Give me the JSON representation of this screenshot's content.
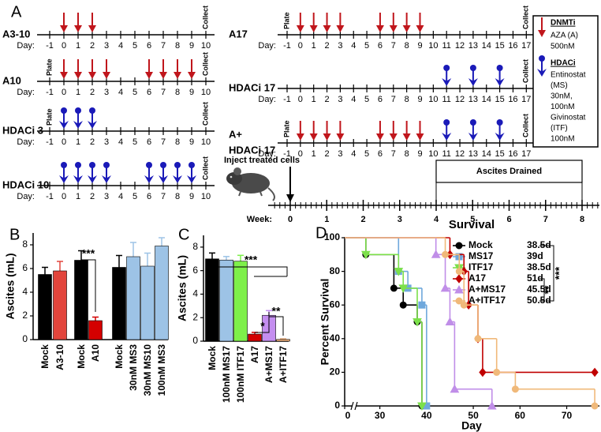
{
  "panel_labels": [
    "A",
    "B",
    "C",
    "D"
  ],
  "panel_a": {
    "day_label": "Day:",
    "timelines": [
      {
        "label": [
          "A3-10"
        ],
        "days": [
          -1,
          0,
          1,
          2,
          3,
          4,
          5,
          6,
          7,
          8,
          9,
          10
        ],
        "dnmti_days": [
          0,
          1,
          2
        ],
        "collect": "Collect"
      },
      {
        "label": [
          "A10"
        ],
        "days": [
          -1,
          0,
          1,
          2,
          3,
          4,
          5,
          6,
          7,
          8,
          9,
          10
        ],
        "plate": "Plate",
        "dnmti_days": [
          0,
          1,
          2,
          3,
          6,
          7,
          8,
          9
        ],
        "collect": "Collect"
      },
      {
        "label": [
          "HDACi 3"
        ],
        "days": [
          -1,
          0,
          1,
          2,
          3,
          4,
          5,
          6,
          7,
          8,
          9,
          10
        ],
        "plate": "Plate",
        "hdaci_days": [
          0,
          1,
          2
        ],
        "collect": "Collect"
      },
      {
        "label": [
          "HDACi 10"
        ],
        "days": [
          -1,
          0,
          1,
          2,
          3,
          4,
          5,
          6,
          7,
          8,
          9,
          10
        ],
        "hdaci_days": [
          0,
          1,
          2,
          3,
          6,
          7,
          8,
          9
        ],
        "collect": "Collect"
      },
      {
        "label": [
          "A17"
        ],
        "days": [
          -1,
          0,
          1,
          2,
          3,
          4,
          5,
          6,
          7,
          8,
          9,
          10,
          11,
          12,
          13,
          14,
          15,
          16,
          17
        ],
        "plate": "Plate",
        "dnmti_days": [
          0,
          1,
          2,
          3,
          6,
          7,
          8,
          9
        ],
        "collect": "Collect"
      },
      {
        "label": [
          "HDACi 17"
        ],
        "days": [
          -1,
          0,
          1,
          2,
          3,
          4,
          5,
          6,
          7,
          8,
          9,
          10,
          11,
          12,
          13,
          14,
          15,
          16,
          17
        ],
        "hdaci_days": [
          11,
          13,
          15
        ],
        "collect": "Collect"
      },
      {
        "label": [
          "A+",
          "HDACi 17"
        ],
        "days": [
          -1,
          0,
          1,
          2,
          3,
          4,
          5,
          6,
          7,
          8,
          9,
          10,
          11,
          12,
          13,
          14,
          15,
          16,
          17
        ],
        "plate": "Plate",
        "dnmti_days": [
          0,
          1,
          2,
          3,
          6,
          7,
          8,
          9
        ],
        "hdaci_days": [
          11,
          13,
          15
        ],
        "collect": "Collect"
      }
    ],
    "legend": {
      "dnmti": {
        "title": "DNMTi",
        "color": "#c0161c",
        "lines": [
          "AZA (A)",
          "500nM"
        ]
      },
      "hdaci": {
        "title": "HDACi",
        "color": "#1a1ab8",
        "lines": [
          "Entinostat",
          "(MS)",
          "30nM,",
          "100nM",
          "Givinostat",
          "(ITF)",
          "100nM"
        ]
      }
    },
    "mouse_timeline": {
      "inject_label": "Inject treated cells",
      "drain_label": "Ascites Drained",
      "drain_weeks": [
        4,
        8
      ],
      "week_label": "Week:",
      "weeks": [
        0,
        1,
        2,
        3,
        4,
        5,
        6,
        7,
        8
      ]
    }
  },
  "chart_data": [
    {
      "type": "bar",
      "ylabel": "Ascites (mL)",
      "categories": [
        "Mock",
        "A3-10",
        "Mock",
        "A10",
        "Mock",
        "30nM MS3",
        "30nM MS10",
        "100nM MS3"
      ],
      "values": [
        5.5,
        5.8,
        6.7,
        1.6,
        6.1,
        7.0,
        6.2,
        7.9
      ],
      "errors": [
        0.6,
        0.8,
        0.8,
        0.3,
        1.0,
        1.2,
        1.1,
        0.7
      ],
      "colors": [
        "#000000",
        "#e2453c",
        "#000000",
        "#d40000",
        "#000000",
        "#9dc3e6",
        "#9dc3e6",
        "#9dc3e6"
      ],
      "ylim": [
        0,
        9
      ],
      "yticks": [
        0,
        2,
        4,
        6,
        8
      ],
      "annotations": [
        "***"
      ]
    },
    {
      "type": "bar",
      "ylabel": "Ascites (mL)",
      "categories": [
        "Mock",
        "100nM MS17",
        "100nM ITF17",
        "A17",
        "A+MS17",
        "A+ITF17"
      ],
      "values": [
        7.0,
        6.9,
        6.8,
        0.6,
        2.2,
        0.15
      ],
      "errors": [
        0.5,
        0.3,
        0.5,
        0.15,
        0.4,
        0.05
      ],
      "colors": [
        "#000000",
        "#9dc3e6",
        "#7ef04a",
        "#d40000",
        "#c48ef0",
        "#f2b27c"
      ],
      "ylim": [
        0,
        9
      ],
      "yticks": [
        0,
        2,
        4,
        6,
        8
      ],
      "annotations": [
        "***",
        "*",
        "**"
      ]
    },
    {
      "type": "step",
      "title": "Survival",
      "xlabel": "Day",
      "ylabel": "Percent Survival",
      "xlim": [
        0,
        77
      ],
      "xbreak": [
        3,
        25
      ],
      "xticks": [
        0,
        30,
        40,
        50,
        60,
        70
      ],
      "ylim": [
        0,
        100
      ],
      "yticks": [
        0,
        20,
        40,
        60,
        80,
        100
      ],
      "series": [
        {
          "name": "Mock",
          "median": "38.5d",
          "color": "#000000",
          "marker": "circle",
          "x": [
            0,
            27,
            33,
            35,
            38,
            39
          ],
          "y": [
            100,
            90,
            70,
            60,
            50,
            0
          ]
        },
        {
          "name": "MS17",
          "median": "39d",
          "color": "#6fa8dc",
          "marker": "square",
          "x": [
            0,
            34,
            36,
            39,
            40
          ],
          "y": [
            100,
            80,
            70,
            60,
            0
          ]
        },
        {
          "name": "ITF17",
          "median": "38.5d",
          "color": "#7ce04a",
          "marker": "triangle-down",
          "x": [
            0,
            27,
            34,
            35,
            38,
            39
          ],
          "y": [
            100,
            90,
            80,
            70,
            50,
            0
          ]
        },
        {
          "name": "A17",
          "median": "51d",
          "color": "#c00000",
          "marker": "diamond",
          "x": [
            0,
            45,
            48,
            49,
            51,
            52,
            76
          ],
          "y": [
            100,
            90,
            80,
            60,
            40,
            20,
            20
          ]
        },
        {
          "name": "A+MS17",
          "median": "45.5d",
          "color": "#c08ee8",
          "marker": "triangle-up",
          "x": [
            0,
            42,
            44,
            45,
            46,
            54
          ],
          "y": [
            100,
            90,
            70,
            50,
            10,
            0
          ]
        },
        {
          "name": "A+ITF17",
          "median": "50.5d",
          "color": "#f0b97a",
          "marker": "circle",
          "x": [
            0,
            44,
            47,
            48,
            51,
            55,
            59,
            76
          ],
          "y": [
            100,
            90,
            80,
            60,
            40,
            20,
            10,
            0
          ]
        }
      ],
      "annotations": [
        "**",
        "***"
      ]
    }
  ]
}
